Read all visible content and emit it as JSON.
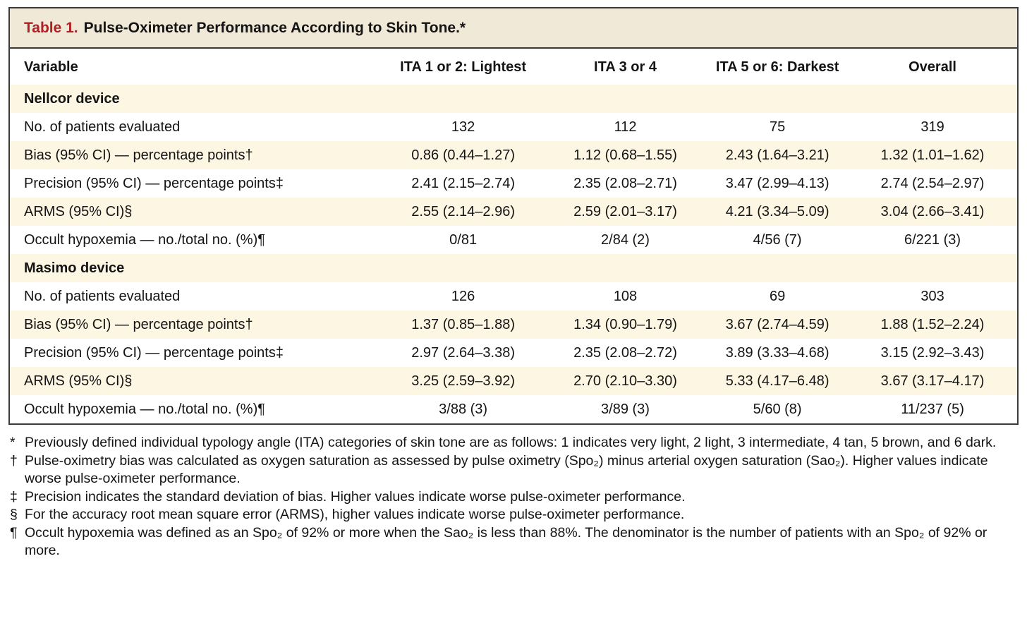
{
  "colors": {
    "title_red": "#b01f24",
    "title_bar_bg": "#f1e9d8",
    "stripe_bg": "#fdf6e3",
    "border": "#3a3a3a",
    "text": "#141414"
  },
  "table": {
    "title_label": "Table 1.",
    "title_text": "Pulse-Oximeter Performance According to Skin Tone.*",
    "columns": [
      "Variable",
      "ITA 1 or 2: Lightest",
      "ITA 3 or 4",
      "ITA 5 or 6: Darkest",
      "Overall"
    ],
    "sections": [
      {
        "header": "Nellcor device",
        "rows": [
          {
            "label": "No. of patients evaluated",
            "values": [
              "132",
              "112",
              "75",
              "319"
            ]
          },
          {
            "label": "Bias (95% CI) — percentage points†",
            "values": [
              "0.86 (0.44–1.27)",
              "1.12 (0.68–1.55)",
              "2.43 (1.64–3.21)",
              "1.32 (1.01–1.62)"
            ]
          },
          {
            "label": "Precision (95% CI) — percentage points‡",
            "values": [
              "2.41 (2.15–2.74)",
              "2.35 (2.08–2.71)",
              "3.47 (2.99–4.13)",
              "2.74 (2.54–2.97)"
            ]
          },
          {
            "label": "ARMS (95% CI)§",
            "values": [
              "2.55 (2.14–2.96)",
              "2.59 (2.01–3.17)",
              "4.21 (3.34–5.09)",
              "3.04 (2.66–3.41)"
            ]
          },
          {
            "label": "Occult hypoxemia — no./total no. (%)¶",
            "values": [
              "0/81",
              "2/84 (2)",
              "4/56 (7)",
              "6/221 (3)"
            ]
          }
        ]
      },
      {
        "header": "Masimo device",
        "rows": [
          {
            "label": "No. of patients evaluated",
            "values": [
              "126",
              "108",
              "69",
              "303"
            ]
          },
          {
            "label": "Bias (95% CI) — percentage points†",
            "values": [
              "1.37 (0.85–1.88)",
              "1.34 (0.90–1.79)",
              "3.67 (2.74–4.59)",
              "1.88 (1.52–2.24)"
            ]
          },
          {
            "label": "Precision (95% CI) — percentage points‡",
            "values": [
              "2.97 (2.64–3.38)",
              "2.35 (2.08–2.72)",
              "3.89 (3.33–4.68)",
              "3.15 (2.92–3.43)"
            ]
          },
          {
            "label": "ARMS (95% CI)§",
            "values": [
              "3.25 (2.59–3.92)",
              "2.70 (2.10–3.30)",
              "5.33 (4.17–6.48)",
              "3.67 (3.17–4.17)"
            ]
          },
          {
            "label": "Occult hypoxemia — no./total no. (%)¶",
            "values": [
              "3/88 (3)",
              "3/89 (3)",
              "5/60 (8)",
              "11/237 (5)"
            ]
          }
        ]
      }
    ]
  },
  "footnotes": [
    {
      "symbol": "*",
      "text": "Previously defined individual typology angle (ITA) categories of skin tone are as follows: 1 indicates very light, 2 light, 3 intermediate, 4 tan, 5 brown, and 6 dark."
    },
    {
      "symbol": "†",
      "text": "Pulse-oximetry bias was calculated as oxygen saturation as assessed by pulse oximetry (Spo₂) minus arterial oxygen saturation (Sao₂). Higher values indicate worse pulse-oximeter performance."
    },
    {
      "symbol": "‡",
      "text": "Precision indicates the standard deviation of bias. Higher values indicate worse pulse-oximeter performance."
    },
    {
      "symbol": "§",
      "text": "For the accuracy root mean square error (ARMS), higher values indicate worse pulse-oximeter performance."
    },
    {
      "symbol": "¶",
      "text": "Occult hypoxemia was defined as an Spo₂ of 92% or more when the Sao₂ is less than 88%. The denominator is the number of patients with an Spo₂ of 92% or more."
    }
  ]
}
